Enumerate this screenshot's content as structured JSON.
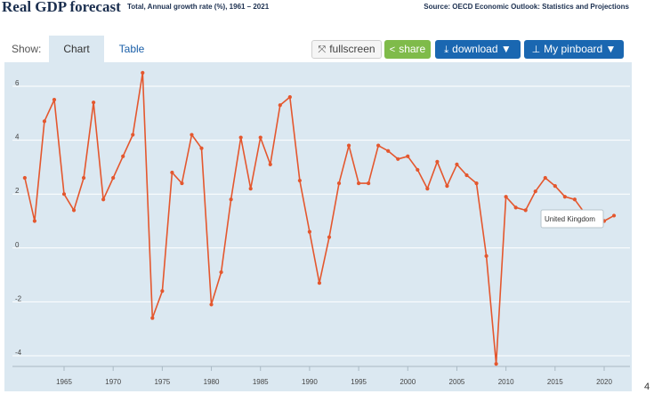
{
  "header": {
    "title": "Real GDP forecast",
    "subtitle": "Total, Annual growth rate (%), 1961 – 2021",
    "source": "Source: OECD Economic Outlook: Statistics and Projections"
  },
  "toolbar": {
    "show_label": "Show:",
    "tabs": [
      "Chart",
      "Table"
    ],
    "fullscreen_label": "fullscreen",
    "share_label": "share",
    "download_label": "download ▼",
    "pinboard_label": "My pinboard ▼"
  },
  "tooltip": {
    "text": "United Kingdom"
  },
  "edge_label": "4",
  "colors": {
    "line": "#e4572e",
    "background": "#dbe8f1",
    "grid": "#ffffff",
    "button_blue": "#1a67b1",
    "share_green": "#7fbb4a"
  },
  "chart_data": {
    "type": "line",
    "title": "Real GDP forecast",
    "subtitle": "Total, Annual growth rate (%), 1961 – 2021",
    "xlim": [
      1961,
      2021
    ],
    "ylim": [
      -4.3,
      6.5
    ],
    "x_ticks": [
      1965,
      1970,
      1975,
      1980,
      1985,
      1990,
      1995,
      2000,
      2005,
      2010,
      2015,
      2020
    ],
    "y_ticks": [
      -4,
      -2,
      0,
      2,
      4,
      6
    ],
    "grid": true,
    "series": [
      {
        "name": "United Kingdom",
        "x": [
          1961,
          1962,
          1963,
          1964,
          1965,
          1966,
          1967,
          1968,
          1969,
          1970,
          1971,
          1972,
          1973,
          1974,
          1975,
          1976,
          1977,
          1978,
          1979,
          1980,
          1981,
          1982,
          1983,
          1984,
          1985,
          1986,
          1987,
          1988,
          1989,
          1990,
          1991,
          1992,
          1993,
          1994,
          1995,
          1996,
          1997,
          1998,
          1999,
          2000,
          2001,
          2002,
          2003,
          2004,
          2005,
          2006,
          2007,
          2008,
          2009,
          2010,
          2011,
          2012,
          2013,
          2014,
          2015,
          2016,
          2017,
          2018,
          2019,
          2020,
          2021
        ],
        "values": [
          2.6,
          1.0,
          4.7,
          5.5,
          2.0,
          1.4,
          2.6,
          5.4,
          1.8,
          2.6,
          3.4,
          4.2,
          6.5,
          -2.6,
          -1.6,
          2.8,
          2.4,
          4.2,
          3.7,
          -2.1,
          -0.9,
          1.8,
          4.1,
          2.2,
          4.1,
          3.1,
          5.3,
          5.6,
          2.5,
          0.6,
          -1.3,
          0.4,
          2.4,
          3.8,
          2.4,
          2.4,
          3.8,
          3.6,
          3.3,
          3.4,
          2.9,
          2.2,
          3.2,
          2.3,
          3.1,
          2.7,
          2.4,
          -0.3,
          -4.3,
          1.9,
          1.5,
          1.4,
          2.1,
          2.6,
          2.3,
          1.9,
          1.8,
          1.3,
          1.3,
          1.0,
          1.2
        ]
      }
    ]
  }
}
